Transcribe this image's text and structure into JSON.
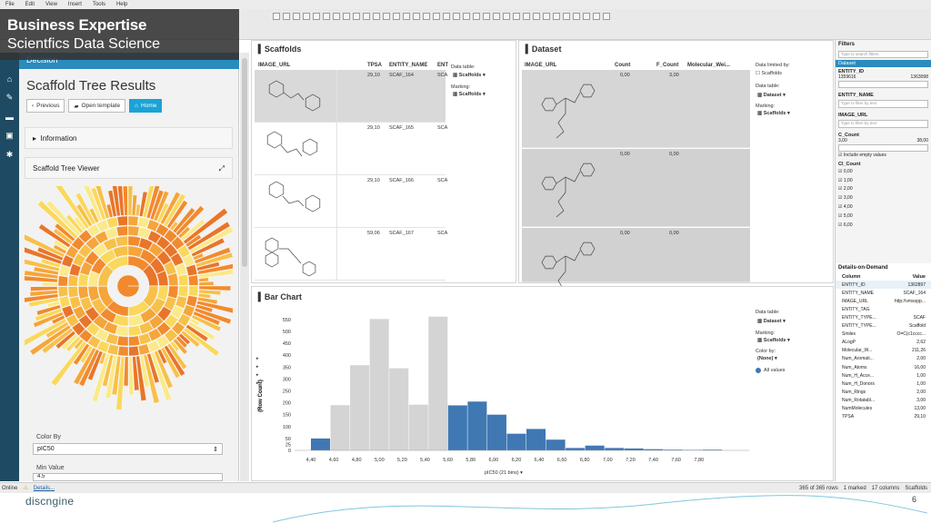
{
  "menu": [
    "File",
    "Edit",
    "View",
    "Insert",
    "Tools",
    "Help"
  ],
  "banner": {
    "title": "Business Expertise",
    "subtitle": "Scientfics Data Science"
  },
  "decision": {
    "label": "Decision"
  },
  "left": {
    "title": "Scaffold Tree Results",
    "buttons": {
      "previous": "Previous",
      "open_template": "Open template",
      "home": "Home"
    },
    "information": "Information",
    "viewer": "Scaffold Tree Viewer",
    "color_by_label": "Color By",
    "color_by_value": "pIC50",
    "min_value_label": "Min Value",
    "min_value": "4.5"
  },
  "scaffolds": {
    "title": "Scaffolds",
    "columns": [
      "IMAGE_URL",
      "TPSA",
      "ENTITY_NAME",
      "ENT"
    ],
    "rows": [
      {
        "tpsa": "29,10",
        "name": "SCAF_164",
        "ent": "SCA"
      },
      {
        "tpsa": "29,10",
        "name": "SCAF_165",
        "ent": "SCA"
      },
      {
        "tpsa": "29,10",
        "name": "SCAF_166",
        "ent": "SCA"
      },
      {
        "tpsa": "59,06",
        "name": "SCAF_167",
        "ent": "SCA"
      }
    ],
    "data_table_label": "Data table:",
    "data_table": "Scaffolds",
    "marking_label": "Marking:",
    "marking": "Scaffolds"
  },
  "dataset": {
    "title": "Dataset",
    "columns": [
      "IMAGE_URL",
      "Count",
      "F_Count",
      "Molecular_Wei..."
    ],
    "rows": [
      {
        "count": "0,00",
        "fcount": "3,00"
      },
      {
        "count": "0,00",
        "fcount": "0,00"
      },
      {
        "count": "0,00",
        "fcount": "0,00"
      }
    ],
    "limited_label": "Data limited by:",
    "limited": "Scaffolds",
    "data_table_label": "Data table:",
    "data_table": "Dataset",
    "marking_label": "Marking:",
    "marking": "Scaffolds"
  },
  "barchart": {
    "title": "Bar Chart",
    "data_table_label": "Data table:",
    "data_table": "Dataset",
    "marking_label": "Marking:",
    "marking": "Scaffolds",
    "color_by_label": "Color by:",
    "color_by": "(None)",
    "legend": "All values",
    "xaxis_selector": "pIC50 (21 bins)"
  },
  "chart_data": {
    "type": "bar",
    "ylabel": "(Row Count)",
    "xlabel": "pIC50 (21 bins)",
    "ylim": [
      0,
      580
    ],
    "yticks": [
      0,
      25,
      50,
      100,
      150,
      200,
      250,
      300,
      350,
      400,
      450,
      500,
      550
    ],
    "xticks": [
      "4,40",
      "4,60",
      "4,80",
      "5,00",
      "5,20",
      "5,40",
      "5,60",
      "5,80",
      "6,00",
      "6,20",
      "6,40",
      "6,60",
      "6,80",
      "7,00",
      "7,20",
      "7,40",
      "7,60",
      "7,80"
    ],
    "bins": [
      {
        "value": 50,
        "marked": true
      },
      {
        "value": 190,
        "marked": false
      },
      {
        "value": 358,
        "marked": false
      },
      {
        "value": 552,
        "marked": false
      },
      {
        "value": 345,
        "marked": false
      },
      {
        "value": 192,
        "marked": false
      },
      {
        "value": 562,
        "marked": false
      },
      {
        "value": 189,
        "marked": true
      },
      {
        "value": 205,
        "marked": true
      },
      {
        "value": 150,
        "marked": true
      },
      {
        "value": 70,
        "marked": true
      },
      {
        "value": 90,
        "marked": true
      },
      {
        "value": 45,
        "marked": true
      },
      {
        "value": 10,
        "marked": true
      },
      {
        "value": 20,
        "marked": true
      },
      {
        "value": 10,
        "marked": true
      },
      {
        "value": 8,
        "marked": true
      },
      {
        "value": 5,
        "marked": true
      },
      {
        "value": 3,
        "marked": true
      },
      {
        "value": 2,
        "marked": true
      },
      {
        "value": 3,
        "marked": true
      }
    ],
    "colors": {
      "marked": "#3f78b3",
      "unmarked": "#d4d4d4"
    }
  },
  "filters": {
    "title": "Filters",
    "search_placeholder": "Type to search filters",
    "dataset": "Dataset",
    "entity_id": "ENTITY_ID",
    "entity_min": "1359616",
    "entity_max": "1363098",
    "entity_name": "ENTITY_NAME",
    "filter_placeholder": "Type to filter by text",
    "image_url": "IMAGE_URL",
    "c_count": "C_Count",
    "c_min": "3,00",
    "c_max": "38,00",
    "include_empty": "Include empty values",
    "cl_count": "Cl_Count",
    "cl_values": [
      "0,00",
      "1,00",
      "2,00",
      "3,00",
      "4,00",
      "5,00",
      "6,00"
    ]
  },
  "details": {
    "title": "Details-on-Demand",
    "headers": [
      "Column",
      "Value"
    ],
    "rows": [
      [
        "ENTITY_ID",
        "1362897"
      ],
      [
        "ENTITY_NAME",
        "SCAF_164"
      ],
      [
        "IMAGE_URL",
        "http://vmsopp..."
      ],
      [
        "ENTITY_TAG",
        ""
      ],
      [
        "ENTITY_TYPE...",
        "SCAF"
      ],
      [
        "ENTITY_TYPE...",
        "Scaffold"
      ],
      [
        "Smiles",
        "O=C(c1cccc..."
      ],
      [
        "ALogP",
        "2,62"
      ],
      [
        "Molecular_W...",
        "211,26"
      ],
      [
        "Num_Aromati...",
        "2,00"
      ],
      [
        "Num_Atoms",
        "16,00"
      ],
      [
        "Num_H_Acce...",
        "1,00"
      ],
      [
        "Num_H_Donors",
        "1,00"
      ],
      [
        "Num_Rings",
        "2,00"
      ],
      [
        "Num_Rotatabl...",
        "3,00"
      ],
      [
        "NumMolecules",
        "13,00"
      ],
      [
        "TPSA",
        "29,10"
      ]
    ]
  },
  "status": {
    "online": "Online",
    "details": "Details...",
    "rows": "365 of 365 rows",
    "marked": "1 marked",
    "columns": "17 columns",
    "table": "Scaffolds"
  },
  "footer": {
    "logo": "discngine",
    "page": "6"
  }
}
